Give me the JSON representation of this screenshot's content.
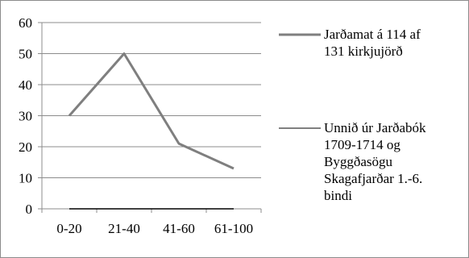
{
  "chart_data": {
    "type": "line",
    "categories": [
      "0-20",
      "21-40",
      "41-60",
      "61-100"
    ],
    "series": [
      {
        "name": "Jarðamat á 114 af 131 kirkjujörð",
        "name_lines": [
          "Jarðamat á 114 af",
          "131 kirkjujörð"
        ],
        "values": [
          30,
          50,
          21,
          13
        ],
        "color": "#7f7f7f"
      },
      {
        "name": "Unnið úr Jarðabók 1709-1714 og Byggðasögu Skagafjarðar 1.-6. bindi",
        "name_lines": [
          "Unnið úr Jarðabók",
          "1709-1714 og",
          "Byggðasögu",
          "Skagafjarðar 1.-6.",
          "bindi"
        ],
        "values": [
          0,
          0,
          0,
          0
        ],
        "color": "#000000"
      }
    ],
    "y_ticks": [
      "0",
      "10",
      "20",
      "30",
      "40",
      "50",
      "60"
    ],
    "ylim": [
      0,
      60
    ],
    "grid": true,
    "legend_position": "right",
    "title": "",
    "xlabel": "",
    "ylabel": ""
  }
}
